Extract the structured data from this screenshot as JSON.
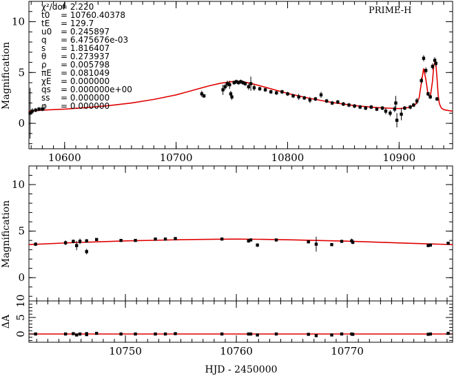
{
  "chart_data": [
    {
      "type": "scatter",
      "panel": "top",
      "title": "PRIME-H",
      "ylabel": "Magnification",
      "xlabel": "",
      "xlim": [
        10568,
        10948
      ],
      "ylim": [
        -2.5,
        12
      ],
      "xticks": [
        10600,
        10700,
        10800,
        10900
      ],
      "yticks": [
        0,
        5,
        10
      ],
      "params": [
        {
          "label": "χ²/dof",
          "value": "2.220"
        },
        {
          "label": "t0",
          "value": "10760.40378"
        },
        {
          "label": "tE",
          "value": "129.7"
        },
        {
          "label": "u0",
          "value": "0.245897"
        },
        {
          "label": "q",
          "value": "6.475676e-03"
        },
        {
          "label": "s",
          "value": "1.816407"
        },
        {
          "label": "θ",
          "value": "0.273937"
        },
        {
          "label": "ρ",
          "value": "0.005798"
        },
        {
          "label": "πE",
          "value": "0.081049"
        },
        {
          "label": "χE",
          "value": "0.000000"
        },
        {
          "label": "qs",
          "value": "0.000000e+00"
        },
        {
          "label": "ss",
          "value": "0.000000"
        },
        {
          "label": "φ",
          "value": "0.000000"
        }
      ],
      "model": {
        "x": [
          10568,
          10580,
          10600,
          10620,
          10640,
          10660,
          10680,
          10700,
          10710,
          10720,
          10730,
          10740,
          10750,
          10755,
          10760,
          10770,
          10780,
          10790,
          10800,
          10810,
          10820,
          10830,
          10840,
          10850,
          10860,
          10870,
          10880,
          10890,
          10900,
          10905,
          10910,
          10915,
          10918,
          10920,
          10922,
          10924,
          10926,
          10928,
          10930,
          10931,
          10932,
          10933,
          10934,
          10935,
          10936,
          10937,
          10938,
          10940,
          10945,
          10948
        ],
        "y": [
          1.2,
          1.3,
          1.4,
          1.55,
          1.75,
          2.0,
          2.35,
          2.8,
          3.1,
          3.4,
          3.7,
          3.95,
          4.1,
          4.15,
          4.1,
          3.85,
          3.55,
          3.25,
          2.95,
          2.7,
          2.45,
          2.25,
          2.05,
          1.9,
          1.75,
          1.65,
          1.55,
          1.5,
          1.45,
          1.5,
          1.6,
          1.9,
          2.5,
          4.0,
          5.4,
          4.3,
          2.8,
          2.6,
          4.2,
          5.6,
          6.0,
          5.8,
          4.5,
          2.8,
          2.0,
          1.7,
          1.5,
          1.35,
          1.25,
          1.2
        ]
      },
      "points": [
        {
          "x": 10569,
          "y": 1.0,
          "err": 2.5
        },
        {
          "x": 10571,
          "y": 1.2,
          "err": 0.3
        },
        {
          "x": 10574,
          "y": 1.3,
          "err": 0.2
        },
        {
          "x": 10577,
          "y": 1.4,
          "err": 0.2
        },
        {
          "x": 10580,
          "y": 1.4,
          "err": 0.2
        },
        {
          "x": 10723,
          "y": 2.9,
          "err": 0.3
        },
        {
          "x": 10725,
          "y": 2.7,
          "err": 0.2
        },
        {
          "x": 10742,
          "y": 3.3,
          "err": 0.5
        },
        {
          "x": 10744,
          "y": 3.6,
          "err": 0.3
        },
        {
          "x": 10746,
          "y": 3.9,
          "err": 0.3
        },
        {
          "x": 10748,
          "y": 3.8,
          "err": 0.4
        },
        {
          "x": 10749,
          "y": 2.9,
          "err": 0.3
        },
        {
          "x": 10750,
          "y": 2.6,
          "err": 0.3
        },
        {
          "x": 10752,
          "y": 4.0,
          "err": 0.2
        },
        {
          "x": 10754,
          "y": 4.1,
          "err": 0.2
        },
        {
          "x": 10756,
          "y": 4.0,
          "err": 0.2
        },
        {
          "x": 10758,
          "y": 4.1,
          "err": 0.2
        },
        {
          "x": 10760,
          "y": 4.0,
          "err": 0.2
        },
        {
          "x": 10762,
          "y": 3.9,
          "err": 0.2
        },
        {
          "x": 10765,
          "y": 3.6,
          "err": 0.3
        },
        {
          "x": 10767,
          "y": 3.9,
          "err": 0.7
        },
        {
          "x": 10770,
          "y": 3.5,
          "err": 0.3
        },
        {
          "x": 10775,
          "y": 3.4,
          "err": 0.2
        },
        {
          "x": 10780,
          "y": 3.3,
          "err": 0.2
        },
        {
          "x": 10785,
          "y": 3.1,
          "err": 0.2
        },
        {
          "x": 10790,
          "y": 3.0,
          "err": 0.2
        },
        {
          "x": 10795,
          "y": 3.1,
          "err": 0.2
        },
        {
          "x": 10800,
          "y": 2.9,
          "err": 0.2
        },
        {
          "x": 10805,
          "y": 2.7,
          "err": 0.2
        },
        {
          "x": 10810,
          "y": 2.6,
          "err": 0.3
        },
        {
          "x": 10815,
          "y": 2.5,
          "err": 0.2
        },
        {
          "x": 10820,
          "y": 2.3,
          "err": 0.3
        },
        {
          "x": 10825,
          "y": 2.4,
          "err": 0.2
        },
        {
          "x": 10830,
          "y": 2.8,
          "err": 0.3
        },
        {
          "x": 10835,
          "y": 2.2,
          "err": 0.2
        },
        {
          "x": 10840,
          "y": 2.0,
          "err": 0.2
        },
        {
          "x": 10845,
          "y": 2.1,
          "err": 0.2
        },
        {
          "x": 10850,
          "y": 1.9,
          "err": 0.2
        },
        {
          "x": 10855,
          "y": 1.8,
          "err": 0.2
        },
        {
          "x": 10860,
          "y": 1.7,
          "err": 0.2
        },
        {
          "x": 10865,
          "y": 1.6,
          "err": 0.2
        },
        {
          "x": 10870,
          "y": 1.5,
          "err": 0.2
        },
        {
          "x": 10875,
          "y": 1.6,
          "err": 0.2
        },
        {
          "x": 10880,
          "y": 1.4,
          "err": 0.2
        },
        {
          "x": 10885,
          "y": 1.5,
          "err": 0.2
        },
        {
          "x": 10888,
          "y": 1.2,
          "err": 0.3
        },
        {
          "x": 10892,
          "y": 1.0,
          "err": 0.3
        },
        {
          "x": 10896,
          "y": 1.4,
          "err": 0.3
        },
        {
          "x": 10898,
          "y": 0.3,
          "err": 0.7
        },
        {
          "x": 10897,
          "y": 2.0,
          "err": 0.7
        },
        {
          "x": 10902,
          "y": 0.9,
          "err": 0.6
        },
        {
          "x": 10905,
          "y": 1.5,
          "err": 0.2
        },
        {
          "x": 10910,
          "y": 1.6,
          "err": 0.2
        },
        {
          "x": 10913,
          "y": 1.8,
          "err": 0.2
        },
        {
          "x": 10916,
          "y": 2.2,
          "err": 0.3
        },
        {
          "x": 10920,
          "y": 4.2,
          "err": 0.3
        },
        {
          "x": 10922,
          "y": 6.4,
          "err": 0.3
        },
        {
          "x": 10924,
          "y": 5.2,
          "err": 0.3
        },
        {
          "x": 10926,
          "y": 2.9,
          "err": 0.2
        },
        {
          "x": 10928,
          "y": 2.6,
          "err": 0.2
        },
        {
          "x": 10930,
          "y": 5.6,
          "err": 0.3
        },
        {
          "x": 10932,
          "y": 6.2,
          "err": 0.3
        },
        {
          "x": 10933,
          "y": 5.9,
          "err": 0.3
        },
        {
          "x": 10934,
          "y": 2.4,
          "err": 0.2
        }
      ]
    },
    {
      "type": "scatter",
      "panel": "zoom",
      "ylabel": "Magnification",
      "xlim": [
        10741.3,
        10779.5
      ],
      "ylim": [
        -2.5,
        12
      ],
      "yticks": [
        0,
        5,
        10
      ],
      "model": {
        "x": [
          10741.3,
          10745,
          10750,
          10755,
          10758,
          10760,
          10762,
          10765,
          10770,
          10775,
          10779.5
        ],
        "y": [
          3.55,
          3.75,
          3.95,
          4.08,
          4.13,
          4.14,
          4.12,
          4.06,
          3.92,
          3.72,
          3.55
        ]
      },
      "points": [
        {
          "x": 10741.9,
          "y": 3.6,
          "err": 0.2
        },
        {
          "x": 10744.6,
          "y": 3.75,
          "err": 0.25
        },
        {
          "x": 10745.3,
          "y": 3.9,
          "err": 0.2
        },
        {
          "x": 10745.6,
          "y": 3.45,
          "err": 0.5
        },
        {
          "x": 10745.9,
          "y": 3.9,
          "err": 0.3
        },
        {
          "x": 10746.5,
          "y": 2.8,
          "err": 0.3
        },
        {
          "x": 10746.5,
          "y": 3.95,
          "err": 0.2
        },
        {
          "x": 10747.4,
          "y": 4.1,
          "err": 0.1
        },
        {
          "x": 10749.6,
          "y": 4.0,
          "err": 0.15
        },
        {
          "x": 10750.9,
          "y": 4.0,
          "err": 0.15
        },
        {
          "x": 10752.7,
          "y": 4.15,
          "err": 0.1
        },
        {
          "x": 10753.6,
          "y": 4.15,
          "err": 0.1
        },
        {
          "x": 10754.5,
          "y": 4.2,
          "err": 0.1
        },
        {
          "x": 10758.7,
          "y": 4.15,
          "err": 0.1
        },
        {
          "x": 10761.1,
          "y": 3.95,
          "err": 0.2
        },
        {
          "x": 10761.3,
          "y": 4.05,
          "err": 0.15
        },
        {
          "x": 10761.9,
          "y": 3.5,
          "err": 0.2
        },
        {
          "x": 10763.6,
          "y": 4.05,
          "err": 0.1
        },
        {
          "x": 10766.5,
          "y": 3.85,
          "err": 0.15
        },
        {
          "x": 10767.2,
          "y": 3.6,
          "err": 0.8
        },
        {
          "x": 10768.6,
          "y": 3.55,
          "err": 0.1
        },
        {
          "x": 10769.5,
          "y": 3.9,
          "err": 0.15
        },
        {
          "x": 10770.4,
          "y": 3.95,
          "err": 0.25
        },
        {
          "x": 10770.5,
          "y": 3.8,
          "err": 0.2
        },
        {
          "x": 10777.3,
          "y": 3.45,
          "err": 0.1
        },
        {
          "x": 10777.5,
          "y": 3.5,
          "err": 0.1
        },
        {
          "x": 10779.1,
          "y": 3.7,
          "err": 0.1
        }
      ]
    },
    {
      "type": "scatter",
      "panel": "residual",
      "ylabel": "ΔA",
      "xlabel": "HJD - 2450000",
      "xlim": [
        10741.3,
        10779.5
      ],
      "ylim": [
        -2.5,
        10
      ],
      "xticks": [
        10750,
        10760,
        10770
      ],
      "yticks": [
        0,
        5,
        10
      ],
      "points": [
        {
          "x": 10741.9,
          "y": 0.0
        },
        {
          "x": 10744.6,
          "y": 0.0
        },
        {
          "x": 10745.3,
          "y": 0.1
        },
        {
          "x": 10745.6,
          "y": -0.3
        },
        {
          "x": 10745.9,
          "y": 0.0
        },
        {
          "x": 10746.5,
          "y": -0.2
        },
        {
          "x": 10746.5,
          "y": 0.1
        },
        {
          "x": 10747.4,
          "y": 0.2
        },
        {
          "x": 10749.6,
          "y": 0.0
        },
        {
          "x": 10750.9,
          "y": 0.0
        },
        {
          "x": 10752.7,
          "y": 0.0
        },
        {
          "x": 10753.6,
          "y": 0.0
        },
        {
          "x": 10754.5,
          "y": 0.1
        },
        {
          "x": 10758.7,
          "y": 0.0
        },
        {
          "x": 10761.1,
          "y": 0.0
        },
        {
          "x": 10761.3,
          "y": 0.0
        },
        {
          "x": 10761.9,
          "y": -0.3
        },
        {
          "x": 10763.6,
          "y": 0.0
        },
        {
          "x": 10766.5,
          "y": -0.1
        },
        {
          "x": 10767.2,
          "y": -0.5
        },
        {
          "x": 10768.6,
          "y": -0.3
        },
        {
          "x": 10769.5,
          "y": 0.0
        },
        {
          "x": 10770.4,
          "y": 0.0
        },
        {
          "x": 10770.5,
          "y": -0.1
        },
        {
          "x": 10777.3,
          "y": -0.1
        },
        {
          "x": 10777.5,
          "y": 0.0
        },
        {
          "x": 10779.1,
          "y": 0.2
        }
      ]
    }
  ]
}
